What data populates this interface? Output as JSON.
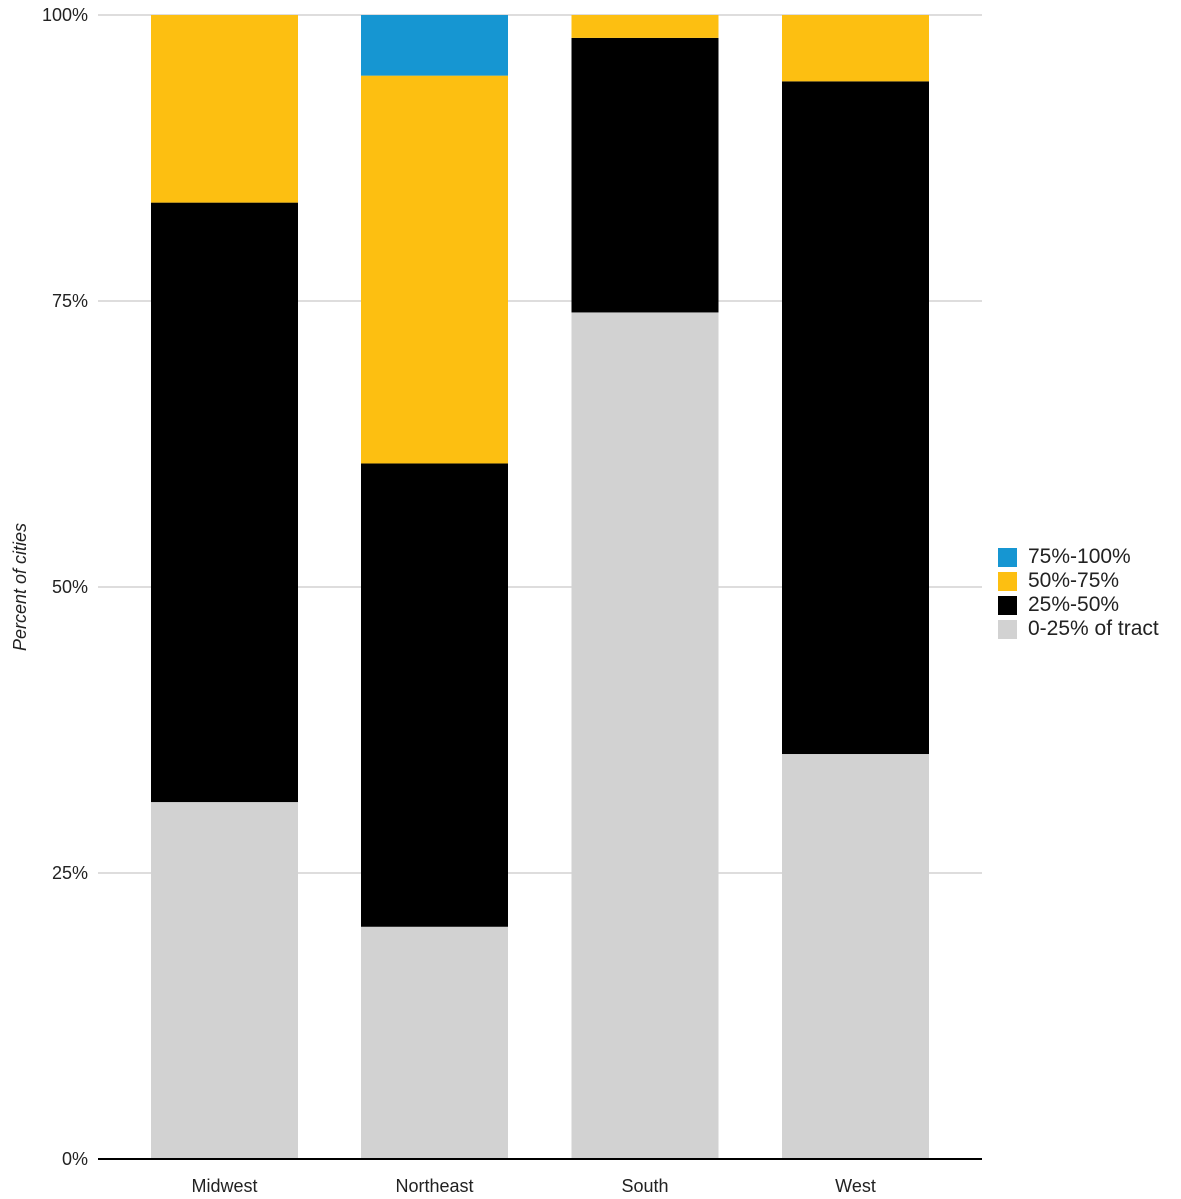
{
  "chart_data": {
    "type": "bar",
    "stacked": true,
    "ylabel": "Percent of cities",
    "xlabel": "",
    "ylim": [
      0,
      100
    ],
    "yticks": [
      "0%",
      "25%",
      "50%",
      "75%",
      "100%"
    ],
    "ytick_values": [
      0,
      25,
      50,
      75,
      100
    ],
    "grid": true,
    "legend_position": "right",
    "categories": [
      "Midwest",
      "Northeast",
      "South",
      "West"
    ],
    "series": [
      {
        "name": "0-25% of tract",
        "color": "#d2d2d2",
        "values": [
          31.2,
          20.3,
          74.0,
          35.4
        ]
      },
      {
        "name": "25%-50%",
        "color": "#000000",
        "values": [
          52.4,
          40.5,
          24.0,
          58.8
        ]
      },
      {
        "name": "50%-75%",
        "color": "#fdbf11",
        "values": [
          16.4,
          33.9,
          2.0,
          5.8
        ]
      },
      {
        "name": "75%-100%",
        "color": "#1696d2",
        "values": [
          0,
          5.3,
          0,
          0
        ]
      }
    ],
    "legend_order": [
      "75%-100%",
      "50%-75%",
      "25%-50%",
      "0-25% of tract"
    ]
  },
  "colors": {
    "gridline": "#dedddd",
    "axis": "#000000",
    "text": "#222222"
  }
}
